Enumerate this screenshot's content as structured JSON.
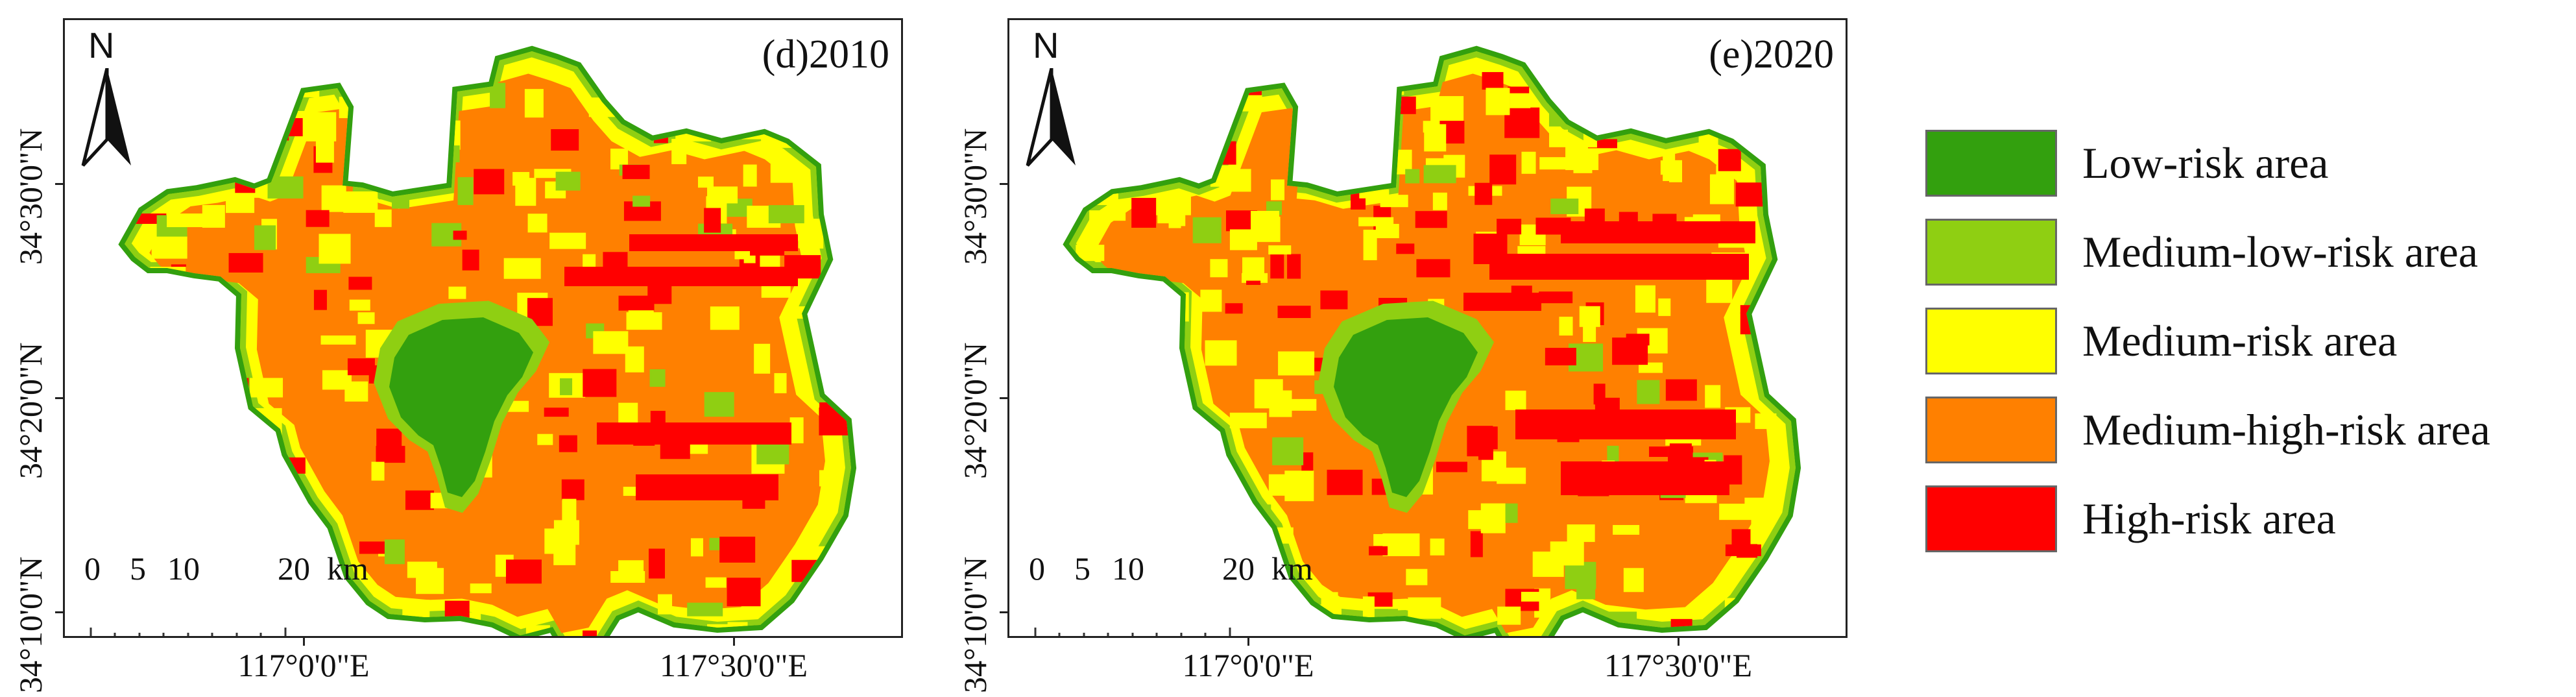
{
  "panels": [
    {
      "id": "d",
      "title": "(d)2010",
      "north": "N",
      "scale": {
        "ticks": [
          "0",
          "5",
          "10",
          "20"
        ],
        "unit": "km"
      }
    },
    {
      "id": "e",
      "title": "(e)2020",
      "north": "N",
      "scale": {
        "ticks": [
          "0",
          "5",
          "10",
          "20"
        ],
        "unit": "km"
      }
    }
  ],
  "axes": {
    "latitude_labels": [
      "34°30'0\"N",
      "34°20'0\"N",
      "34°10'0\"N"
    ],
    "longitude_labels": [
      "117°0'0\"E",
      "117°30'0\"E"
    ]
  },
  "legend": {
    "items": [
      {
        "label": "Low-risk area",
        "color": "#33A00E"
      },
      {
        "label": "Medium-low-risk area",
        "color": "#8FCF12"
      },
      {
        "label": "Medium-risk area",
        "color": "#FFFF00"
      },
      {
        "label": "Medium-high-risk area",
        "color": "#FF8000"
      },
      {
        "label": "High-risk area",
        "color": "#FF0000"
      }
    ]
  },
  "colors": {
    "frame": "#222222",
    "background": "#FFFFFF"
  }
}
